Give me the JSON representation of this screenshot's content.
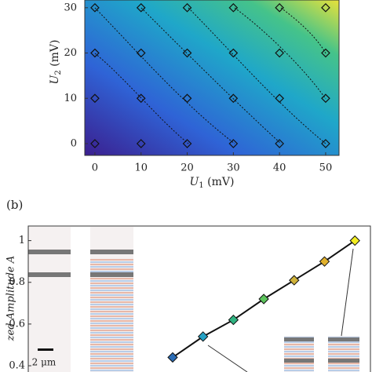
{
  "chart_data": [
    {
      "type": "scatter",
      "x": [
        0,
        10,
        20,
        30,
        40,
        50,
        0,
        10,
        20,
        30,
        40,
        50,
        0,
        10,
        20,
        30,
        40,
        50,
        0,
        10,
        20,
        30,
        40,
        50
      ],
      "y": [
        0,
        0,
        0,
        0,
        0,
        0,
        10,
        10,
        10,
        10,
        10,
        10,
        20,
        20,
        20,
        20,
        20,
        20,
        30,
        30,
        30,
        30,
        30,
        30
      ],
      "xlim": [
        -2.2,
        52.9
      ],
      "ylim": [
        -2.6,
        31.7
      ],
      "xticks": [
        0,
        10,
        20,
        30,
        40,
        50
      ],
      "yticks": [
        0,
        10,
        20,
        30
      ],
      "xlabel": {
        "symbol": "U",
        "sub": "1",
        "unit": " (mV)"
      },
      "ylabel": {
        "symbol": "U",
        "sub": "2",
        "unit": " (mV)"
      }
    },
    {
      "type": "line",
      "panel_label": "(b)",
      "values": [
        0.44,
        0.54,
        0.62,
        0.72,
        0.81,
        0.9,
        1.0
      ],
      "colors": [
        "#2b6cb5",
        "#25a2c6",
        "#2fb381",
        "#5cc45c",
        "#cfb23a",
        "#e1b12c",
        "#f3ee22"
      ],
      "ylim": [
        0.37,
        1.07
      ],
      "yticks": [
        {
          "value": 0.4,
          "label": "0.4"
        },
        {
          "value": 0.6,
          "label": "0.6"
        },
        {
          "value": 0.8,
          "label": "0.8"
        },
        1
      ],
      "ylabel": "zed Amplitude A",
      "scale_bar": "2 μm"
    }
  ]
}
